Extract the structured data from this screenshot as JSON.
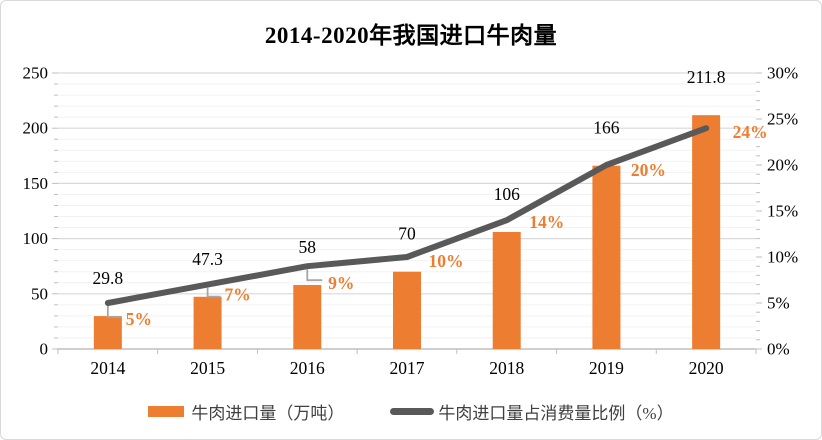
{
  "title": "2014-2020年我国进口牛肉量",
  "colors": {
    "bar": "#ED7D31",
    "line": "#595959",
    "pct_label": "#ED7D31",
    "value_label": "#000000",
    "grid_major": "#D9D9D9",
    "grid_minor": "#F2F2F2",
    "axis": "#BFBFBF",
    "leader": "#A6A6A6",
    "legend_text": "#404040"
  },
  "chart_data": {
    "type": "bar+line combo",
    "title": "2014-2020年我国进口牛肉量",
    "categories": [
      "2014",
      "2015",
      "2016",
      "2017",
      "2018",
      "2019",
      "2020"
    ],
    "series": [
      {
        "name": "牛肉进口量（万吨）",
        "type": "bar",
        "axis": "left",
        "values": [
          29.8,
          47.3,
          58,
          70,
          106,
          166,
          211.8
        ],
        "data_labels": [
          "29.8",
          "47.3",
          "58",
          "70",
          "106",
          "166",
          "211.8"
        ]
      },
      {
        "name": "牛肉进口量占消费量比例（%）",
        "type": "line",
        "axis": "right",
        "values": [
          5,
          7,
          9,
          10,
          14,
          20,
          24
        ],
        "data_labels": [
          "5%",
          "7%",
          "9%",
          "10%",
          "14%",
          "20%",
          "24%"
        ]
      }
    ],
    "left_axis": {
      "min": 0,
      "max": 250,
      "major_step": 50,
      "minor_step": 10,
      "tick_labels": [
        "0",
        "50",
        "100",
        "150",
        "200",
        "250"
      ]
    },
    "right_axis": {
      "min": 0,
      "max": 30,
      "major_step": 5,
      "minor_step": 1,
      "tick_labels": [
        "0%",
        "5%",
        "10%",
        "15%",
        "20%",
        "25%",
        "30%"
      ]
    },
    "grid": "minor horizontal gridlines on",
    "legend_position": "bottom"
  },
  "legend": {
    "items": [
      {
        "label": "牛肉进口量（万吨）",
        "swatch": "bar"
      },
      {
        "label": "牛肉进口量占消费量比例（%）",
        "swatch": "line"
      }
    ]
  }
}
